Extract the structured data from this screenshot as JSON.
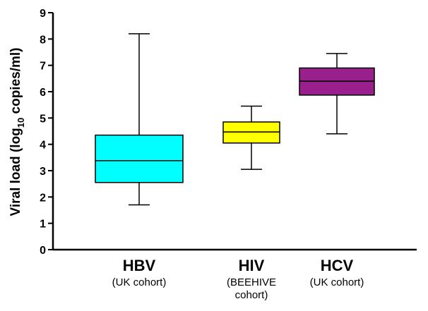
{
  "chart_data": {
    "type": "box",
    "ylabel": [
      "Viral load (log",
      "10",
      " copies/ml)"
    ],
    "categories": [
      "HBV",
      "HIV",
      "HCV"
    ],
    "category_notes": [
      "(UK cohort)",
      "(BEEHIVE cohort)",
      "(UK cohort)"
    ],
    "colors": [
      "#00ffff",
      "#ffff00",
      "#99208c"
    ],
    "min": [
      1.7,
      3.05,
      4.4
    ],
    "q1": [
      2.55,
      4.05,
      5.87
    ],
    "median": [
      3.38,
      4.47,
      6.4
    ],
    "q3": [
      4.35,
      4.85,
      6.9
    ],
    "max": [
      8.2,
      5.45,
      7.45
    ],
    "ylim": [
      0,
      9
    ],
    "yticks": [
      0,
      1,
      2,
      3,
      4,
      5,
      6,
      7,
      8,
      9
    ]
  }
}
